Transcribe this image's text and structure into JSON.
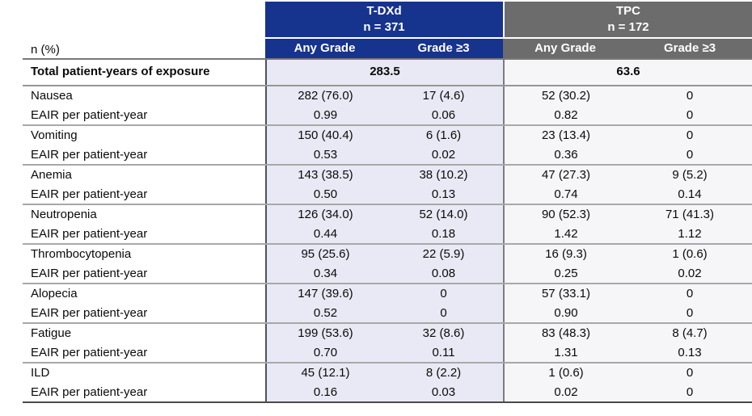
{
  "header": {
    "corner_label": "n (%)",
    "tdxd": {
      "name": "T-DXd",
      "n": "n = 371",
      "columns": [
        "Any Grade",
        "Grade ≥3"
      ]
    },
    "tpc": {
      "name": "TPC",
      "n": "n = 172",
      "columns": [
        "Any Grade",
        "Grade ≥3"
      ]
    }
  },
  "exposure": {
    "label": "Total patient-years of exposure",
    "tdxd": "283.5",
    "tpc": "63.6"
  },
  "rows": [
    {
      "label": "Nausea",
      "sublabel": "EAIR per patient-year",
      "values": [
        "282 (76.0)",
        "17 (4.6)",
        "52 (30.2)",
        "0"
      ],
      "eair": [
        "0.99",
        "0.06",
        "0.82",
        "0"
      ]
    },
    {
      "label": "Vomiting",
      "sublabel": "EAIR per patient-year",
      "values": [
        "150 (40.4)",
        "6 (1.6)",
        "23 (13.4)",
        "0"
      ],
      "eair": [
        "0.53",
        "0.02",
        "0.36",
        "0"
      ]
    },
    {
      "label": "Anemia",
      "sublabel": "EAIR per patient-year",
      "values": [
        "143 (38.5)",
        "38 (10.2)",
        "47 (27.3)",
        "9 (5.2)"
      ],
      "eair": [
        "0.50",
        "0.13",
        "0.74",
        "0.14"
      ]
    },
    {
      "label": "Neutropenia",
      "sublabel": "EAIR per patient-year",
      "values": [
        "126 (34.0)",
        "52 (14.0)",
        "90 (52.3)",
        "71 (41.3)"
      ],
      "eair": [
        "0.44",
        "0.18",
        "1.42",
        "1.12"
      ]
    },
    {
      "label": "Thrombocytopenia",
      "sublabel": "EAIR per patient-year",
      "values": [
        "95 (25.6)",
        "22 (5.9)",
        "16 (9.3)",
        "1 (0.6)"
      ],
      "eair": [
        "0.34",
        "0.08",
        "0.25",
        "0.02"
      ]
    },
    {
      "label": "Alopecia",
      "sublabel": "EAIR per patient-year",
      "values": [
        "147 (39.6)",
        "0",
        "57 (33.1)",
        "0"
      ],
      "eair": [
        "0.52",
        "0",
        "0.90",
        "0"
      ]
    },
    {
      "label": "Fatigue",
      "sublabel": "EAIR per patient-year",
      "values": [
        "199 (53.6)",
        "32 (8.6)",
        "83 (48.3)",
        "8 (4.7)"
      ],
      "eair": [
        "0.70",
        "0.11",
        "1.31",
        "0.13"
      ]
    },
    {
      "label": "ILD",
      "sublabel": "EAIR per patient-year",
      "values": [
        "45 (12.1)",
        "8 (2.2)",
        "1 (0.6)",
        "0"
      ],
      "eair": [
        "0.16",
        "0.03",
        "0.02",
        "0"
      ]
    }
  ],
  "colors": {
    "tdxd_header": "#16338d",
    "tpc_header": "#6c6c6c",
    "tdxd_body": "#e9e9f5",
    "tpc_body": "#f6f6f9"
  }
}
